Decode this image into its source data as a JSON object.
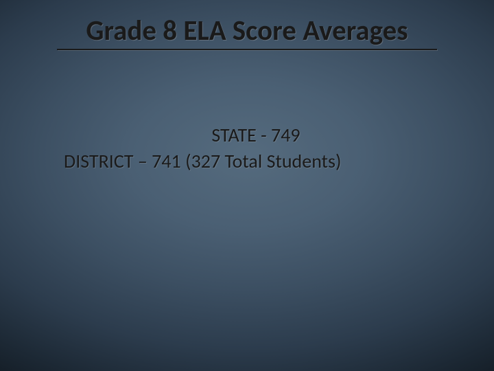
{
  "slide": {
    "title": "Grade 8 ELA Score Averages",
    "line1": "STATE - 749",
    "line2": "DISTRICT – 741 (327 Total Students)"
  },
  "style": {
    "background_gradient": {
      "type": "radial",
      "center": "50% 42%",
      "stops": [
        "#556b7e",
        "#4a5f73",
        "#3c4f62",
        "#2c3c4d",
        "#1c2834",
        "#0d1319"
      ]
    },
    "title_fontsize": 41,
    "title_weight": 700,
    "title_color": "#1a1a1a",
    "body_fontsize": 28,
    "body_color": "#1a1a1a",
    "underline_color": "#1a1a1a",
    "font_family": "Calibri"
  },
  "data": {
    "state_score": 749,
    "district_score": 741,
    "total_students": 327
  }
}
